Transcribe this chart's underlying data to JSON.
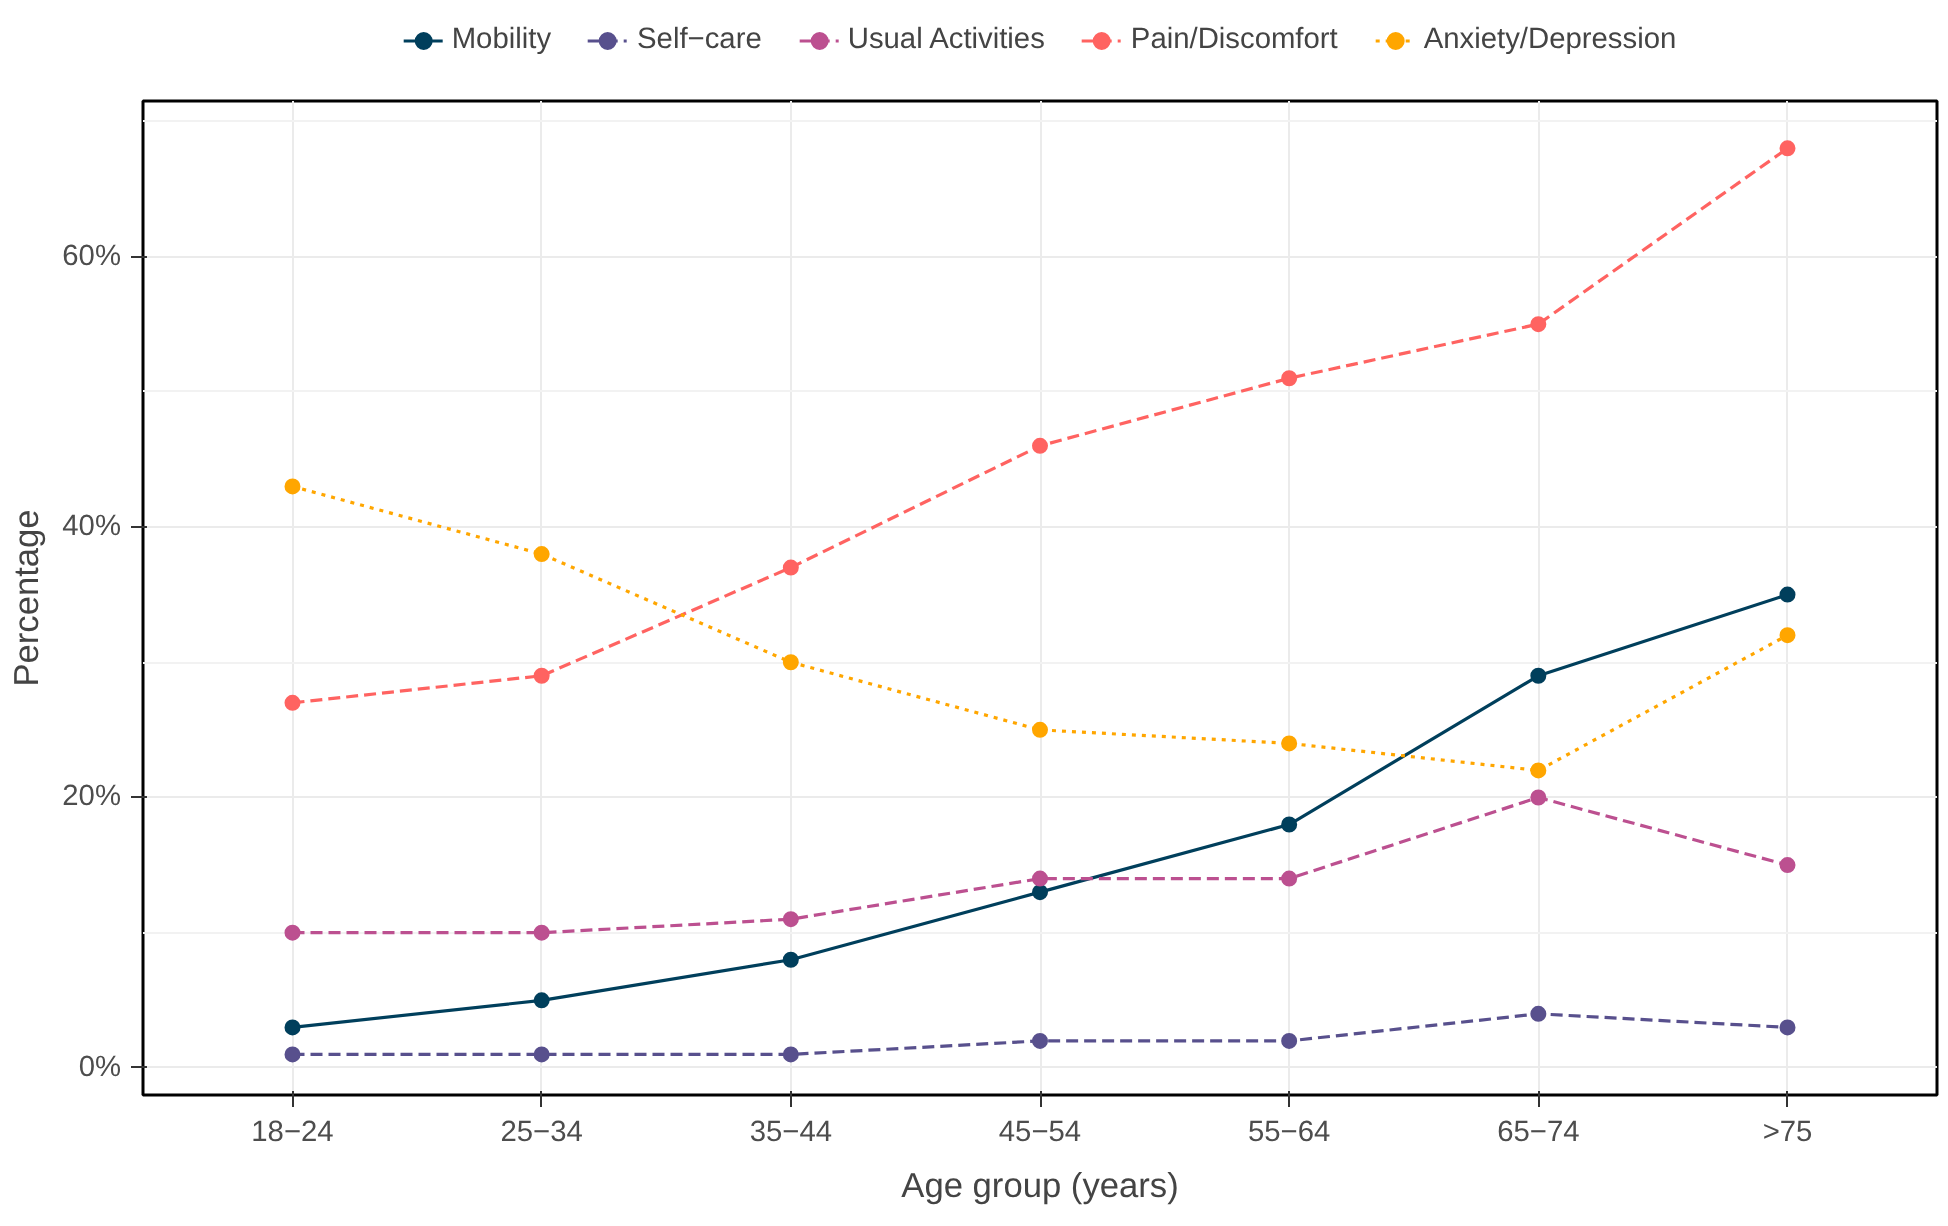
{
  "chart_data": {
    "type": "line",
    "xlabel": "Age group (years)",
    "ylabel": "Percentage",
    "categories": [
      "18−24",
      "25−34",
      "35−44",
      "45−54",
      "55−64",
      "65−74",
      ">75"
    ],
    "series": [
      {
        "name": "Mobility",
        "color": "#003f5c",
        "line_style": "solid",
        "values": [
          3,
          5,
          8,
          13,
          18,
          29,
          35
        ]
      },
      {
        "name": "Self−care",
        "color": "#58508d",
        "line_style": "dashed",
        "values": [
          1,
          1,
          1,
          2,
          2,
          4,
          3
        ]
      },
      {
        "name": "Usual Activities",
        "color": "#bc5090",
        "line_style": "dashed",
        "values": [
          10,
          10,
          11,
          14,
          14,
          20,
          15
        ]
      },
      {
        "name": "Pain/Discomfort",
        "color": "#ff6361",
        "line_style": "dashed",
        "values": [
          27,
          29,
          37,
          46,
          51,
          55,
          68
        ]
      },
      {
        "name": "Anxiety/Depression",
        "color": "#ffa600",
        "line_style": "dotted",
        "values": [
          43,
          38,
          30,
          25,
          24,
          22,
          32
        ]
      }
    ],
    "ylim": [
      -2,
      71.5
    ],
    "yticks": [
      {
        "value": 0,
        "label": "0%"
      },
      {
        "value": 20,
        "label": "20%"
      },
      {
        "value": 40,
        "label": "40%"
      },
      {
        "value": 60,
        "label": "60%"
      }
    ],
    "grid": true,
    "legend": "top",
    "marker": "circle"
  }
}
